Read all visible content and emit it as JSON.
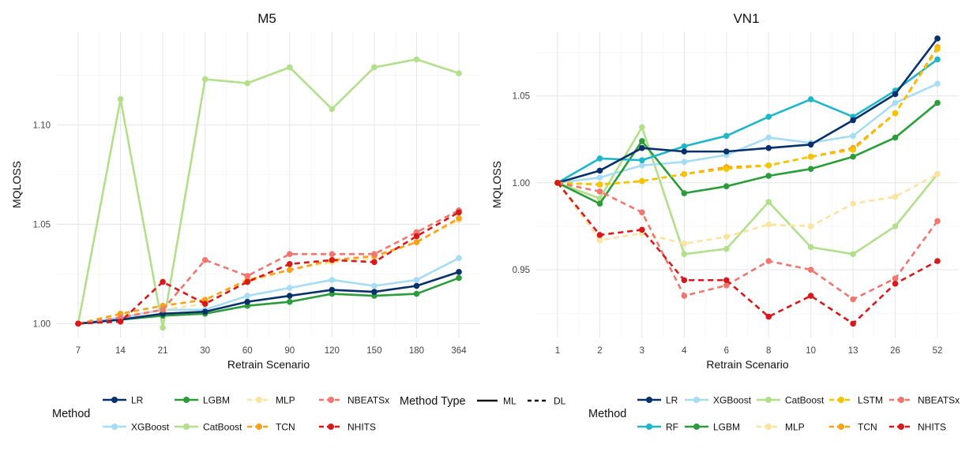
{
  "chart_data": [
    {
      "type": "line",
      "title": "M5",
      "xlabel": "Retrain Scenario",
      "ylabel": "MQLOSS",
      "categories": [
        "7",
        "14",
        "21",
        "30",
        "60",
        "90",
        "120",
        "150",
        "180",
        "364"
      ],
      "ylim": [
        0.993,
        1.147
      ],
      "yticks": [
        1.0,
        1.05,
        1.1
      ],
      "ytick_labels": [
        "1.00",
        "1.05",
        "1.10"
      ],
      "grid": true,
      "series": [
        {
          "name": "CatBoost",
          "type": "ML",
          "color": "#b2df8a",
          "values": [
            1.0,
            1.113,
            0.998,
            1.123,
            1.121,
            1.129,
            1.108,
            1.129,
            1.133,
            1.126
          ]
        },
        {
          "name": "XGBoost",
          "type": "ML",
          "color": "#a6dcf4",
          "values": [
            1.0,
            1.003,
            1.007,
            1.007,
            1.014,
            1.018,
            1.022,
            1.019,
            1.022,
            1.033
          ]
        },
        {
          "name": "LGBM",
          "type": "ML",
          "color": "#2a9d3a",
          "values": [
            1.0,
            1.002,
            1.004,
            1.005,
            1.009,
            1.011,
            1.015,
            1.014,
            1.015,
            1.023
          ]
        },
        {
          "name": "LR",
          "type": "ML",
          "color": "#08306b",
          "values": [
            1.0,
            1.002,
            1.005,
            1.006,
            1.011,
            1.014,
            1.017,
            1.016,
            1.019,
            1.026
          ]
        },
        {
          "name": "MLP",
          "type": "DL",
          "color": "#fbe3a0",
          "values": [
            1.0,
            1.004,
            1.007,
            1.01,
            1.021,
            1.027,
            1.031,
            1.033,
            1.041,
            1.052
          ]
        },
        {
          "name": "TCN",
          "type": "DL",
          "color": "#f6a21a",
          "values": [
            1.0,
            1.005,
            1.009,
            1.012,
            1.022,
            1.027,
            1.032,
            1.034,
            1.041,
            1.053
          ]
        },
        {
          "name": "NBEATSx",
          "type": "DL",
          "color": "#f0766f",
          "values": [
            1.0,
            1.003,
            1.007,
            1.032,
            1.024,
            1.035,
            1.035,
            1.035,
            1.046,
            1.057
          ]
        },
        {
          "name": "NHITS",
          "type": "DL",
          "color": "#d7191c",
          "values": [
            1.0,
            1.001,
            1.021,
            1.01,
            1.021,
            1.03,
            1.032,
            1.031,
            1.044,
            1.056
          ]
        }
      ]
    },
    {
      "type": "line",
      "title": "VN1",
      "xlabel": "Retrain Scenario",
      "ylabel": "MQLOSS",
      "categories": [
        "1",
        "2",
        "3",
        "4",
        "6",
        "8",
        "10",
        "13",
        "26",
        "52"
      ],
      "ylim": [
        0.911,
        1.087
      ],
      "yticks": [
        0.95,
        1.0,
        1.05
      ],
      "ytick_labels": [
        "0.95",
        "1.00",
        "1.05"
      ],
      "grid": true,
      "series": [
        {
          "name": "CatBoost",
          "type": "ML",
          "color": "#b2df8a",
          "values": [
            1.0,
            0.991,
            1.032,
            0.959,
            0.962,
            0.989,
            0.963,
            0.959,
            0.975,
            1.005
          ]
        },
        {
          "name": "XGBoost",
          "type": "ML",
          "color": "#a6dcf4",
          "values": [
            1.0,
            1.003,
            1.01,
            1.012,
            1.016,
            1.026,
            1.023,
            1.027,
            1.046,
            1.057
          ]
        },
        {
          "name": "LGBM",
          "type": "ML",
          "color": "#2a9d3a",
          "values": [
            1.0,
            0.988,
            1.024,
            0.994,
            0.998,
            1.004,
            1.008,
            1.015,
            1.026,
            1.046
          ]
        },
        {
          "name": "RF",
          "type": "ML",
          "color": "#1fb6c9",
          "values": [
            1.0,
            1.014,
            1.013,
            1.021,
            1.027,
            1.038,
            1.048,
            1.038,
            1.053,
            1.071
          ]
        },
        {
          "name": "LR",
          "type": "ML",
          "color": "#08306b",
          "values": [
            1.0,
            1.007,
            1.02,
            1.018,
            1.018,
            1.02,
            1.022,
            1.036,
            1.051,
            1.083
          ]
        },
        {
          "name": "MLP",
          "type": "DL",
          "color": "#fbe3a0",
          "values": [
            1.0,
            0.967,
            0.971,
            0.965,
            0.969,
            0.976,
            0.975,
            0.988,
            0.992,
            1.005
          ]
        },
        {
          "name": "TCN",
          "type": "DL",
          "color": "#f6a21a",
          "values": [
            1.0,
            0.999,
            1.001,
            1.005,
            1.009,
            1.01,
            1.015,
            1.02,
            1.04,
            1.078
          ]
        },
        {
          "name": "LSTM",
          "type": "DL",
          "color": "#f5c400",
          "values": [
            1.0,
            0.999,
            1.001,
            1.005,
            1.008,
            1.01,
            1.015,
            1.019,
            1.04,
            1.077
          ]
        },
        {
          "name": "NBEATSx",
          "type": "DL",
          "color": "#f0766f",
          "values": [
            1.0,
            0.995,
            0.983,
            0.935,
            0.941,
            0.955,
            0.95,
            0.933,
            0.945,
            0.978
          ]
        },
        {
          "name": "NHITS",
          "type": "DL",
          "color": "#d7191c",
          "values": [
            1.0,
            0.97,
            0.973,
            0.944,
            0.944,
            0.923,
            0.935,
            0.919,
            0.942,
            0.955
          ]
        }
      ]
    }
  ],
  "legend": {
    "method_title": "Method",
    "method_type_title": "Method Type",
    "method_type_items": [
      {
        "label": "ML",
        "dash": "solid"
      },
      {
        "label": "DL",
        "dash": "dashed"
      }
    ],
    "left_methods": [
      {
        "label": "LR",
        "color": "#08306b",
        "dash": "solid"
      },
      {
        "label": "XGBoost",
        "color": "#a6dcf4",
        "dash": "solid"
      },
      {
        "label": "LGBM",
        "color": "#2a9d3a",
        "dash": "solid"
      },
      {
        "label": "CatBoost",
        "color": "#b2df8a",
        "dash": "solid"
      },
      {
        "label": "MLP",
        "color": "#fbe3a0",
        "dash": "dashed"
      },
      {
        "label": "TCN",
        "color": "#f6a21a",
        "dash": "dashed"
      },
      {
        "label": "NBEATSx",
        "color": "#f0766f",
        "dash": "dashed"
      },
      {
        "label": "NHITS",
        "color": "#d7191c",
        "dash": "dashed"
      }
    ],
    "right_methods": [
      {
        "label": "LR",
        "color": "#08306b",
        "dash": "solid"
      },
      {
        "label": "RF",
        "color": "#1fb6c9",
        "dash": "solid"
      },
      {
        "label": "XGBoost",
        "color": "#a6dcf4",
        "dash": "solid"
      },
      {
        "label": "LGBM",
        "color": "#2a9d3a",
        "dash": "solid"
      },
      {
        "label": "CatBoost",
        "color": "#b2df8a",
        "dash": "solid"
      },
      {
        "label": "MLP",
        "color": "#fbe3a0",
        "dash": "dashed"
      },
      {
        "label": "LSTM",
        "color": "#f5c400",
        "dash": "dashed"
      },
      {
        "label": "TCN",
        "color": "#f6a21a",
        "dash": "dashed"
      },
      {
        "label": "NBEATSx",
        "color": "#f0766f",
        "dash": "dashed"
      },
      {
        "label": "NHITS",
        "color": "#d7191c",
        "dash": "dashed"
      }
    ]
  }
}
